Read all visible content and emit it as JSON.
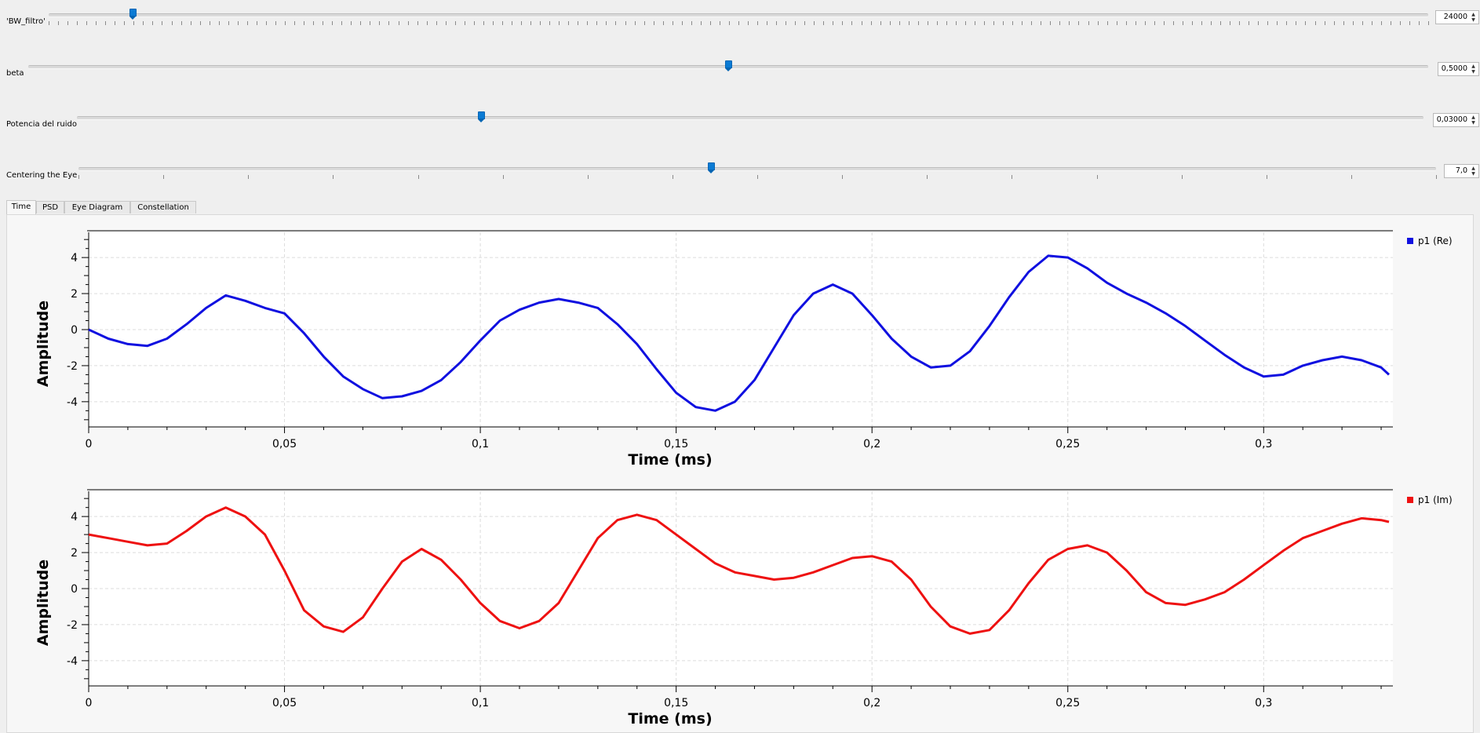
{
  "sliders": [
    {
      "label": "'BW_filtro'",
      "value": "24000",
      "fraction": 0.061
    },
    {
      "label": "beta",
      "value": "0,5000",
      "fraction": 0.5
    },
    {
      "label": "Potencia del ruido",
      "value": "0,03000",
      "fraction": 0.3
    },
    {
      "label": "Centering the Eye",
      "value": "7,0",
      "fraction": 0.466
    }
  ],
  "tabs": [
    {
      "label": "Time",
      "active": true
    },
    {
      "label": "PSD",
      "active": false
    },
    {
      "label": "Eye Diagram",
      "active": false
    },
    {
      "label": "Constellation",
      "active": false
    }
  ],
  "icons": {
    "spin_up": "▲",
    "spin_down": "▼",
    "spin_arrows": "spin-arrows-icon"
  },
  "chart_data": [
    {
      "type": "line",
      "xlabel": "Time (ms)",
      "ylabel": "Amplitude",
      "xlim": [
        0,
        0.333
      ],
      "ylim": [
        -5.4,
        5.4
      ],
      "x_ticks": [
        "0",
        "0,05",
        "0,1",
        "0,15",
        "0,2",
        "0,25",
        "0,3"
      ],
      "y_ticks": [
        "4",
        "2",
        "0",
        "-2",
        "-4"
      ],
      "grid": true,
      "legend": "top-right",
      "series": [
        {
          "name": "p1 (Re)",
          "color": "#1010e0",
          "x": [
            0,
            0.005,
            0.01,
            0.015,
            0.02,
            0.025,
            0.03,
            0.035,
            0.04,
            0.045,
            0.05,
            0.055,
            0.06,
            0.065,
            0.07,
            0.075,
            0.08,
            0.085,
            0.09,
            0.095,
            0.1,
            0.105,
            0.11,
            0.115,
            0.12,
            0.125,
            0.13,
            0.135,
            0.14,
            0.145,
            0.15,
            0.155,
            0.16,
            0.165,
            0.17,
            0.175,
            0.18,
            0.185,
            0.19,
            0.195,
            0.2,
            0.205,
            0.21,
            0.215,
            0.22,
            0.225,
            0.23,
            0.235,
            0.24,
            0.245,
            0.25,
            0.255,
            0.26,
            0.265,
            0.27,
            0.275,
            0.28,
            0.285,
            0.29,
            0.295,
            0.3,
            0.305,
            0.31,
            0.315,
            0.32,
            0.325,
            0.33,
            0.332
          ],
          "y": [
            0,
            -0.5,
            -0.8,
            -0.9,
            -0.5,
            0.3,
            1.2,
            1.9,
            1.6,
            1.2,
            0.9,
            -0.2,
            -1.5,
            -2.6,
            -3.3,
            -3.8,
            -3.7,
            -3.4,
            -2.8,
            -1.8,
            -0.6,
            0.5,
            1.1,
            1.5,
            1.7,
            1.5,
            1.2,
            0.3,
            -0.8,
            -2.2,
            -3.5,
            -4.3,
            -4.5,
            -4.0,
            -2.8,
            -1.0,
            0.8,
            2.0,
            2.5,
            2.0,
            0.8,
            -0.5,
            -1.5,
            -2.1,
            -2.0,
            -1.2,
            0.2,
            1.8,
            3.2,
            4.1,
            4.0,
            3.4,
            2.6,
            2.0,
            1.5,
            0.9,
            0.2,
            -0.6,
            -1.4,
            -2.1,
            -2.6,
            -2.5,
            -2.0,
            -1.7,
            -1.5,
            -1.7,
            -2.1,
            -2.5
          ]
        }
      ]
    },
    {
      "type": "line",
      "xlabel": "Time (ms)",
      "ylabel": "Amplitude",
      "xlim": [
        0,
        0.333
      ],
      "ylim": [
        -5.4,
        5.4
      ],
      "x_ticks": [
        "0",
        "0,05",
        "0,1",
        "0,15",
        "0,2",
        "0,25",
        "0,3"
      ],
      "y_ticks": [
        "4",
        "2",
        "0",
        "-2",
        "-4"
      ],
      "grid": true,
      "legend": "top-right",
      "series": [
        {
          "name": "p1 (Im)",
          "color": "#ee1111",
          "x": [
            0,
            0.005,
            0.01,
            0.015,
            0.02,
            0.025,
            0.03,
            0.035,
            0.04,
            0.045,
            0.05,
            0.055,
            0.06,
            0.065,
            0.07,
            0.075,
            0.08,
            0.085,
            0.09,
            0.095,
            0.1,
            0.105,
            0.11,
            0.115,
            0.12,
            0.125,
            0.13,
            0.135,
            0.14,
            0.145,
            0.15,
            0.155,
            0.16,
            0.165,
            0.17,
            0.175,
            0.18,
            0.185,
            0.19,
            0.195,
            0.2,
            0.205,
            0.21,
            0.215,
            0.22,
            0.225,
            0.23,
            0.235,
            0.24,
            0.245,
            0.25,
            0.255,
            0.26,
            0.265,
            0.27,
            0.275,
            0.28,
            0.285,
            0.29,
            0.295,
            0.3,
            0.305,
            0.31,
            0.315,
            0.32,
            0.325,
            0.33,
            0.332
          ],
          "y": [
            3.0,
            2.8,
            2.6,
            2.4,
            2.5,
            3.2,
            4.0,
            4.5,
            4.0,
            3.0,
            1.0,
            -1.2,
            -2.1,
            -2.4,
            -1.6,
            0,
            1.5,
            2.2,
            1.6,
            0.5,
            -0.8,
            -1.8,
            -2.2,
            -1.8,
            -0.8,
            1.0,
            2.8,
            3.8,
            4.1,
            3.8,
            3.0,
            2.2,
            1.4,
            0.9,
            0.7,
            0.5,
            0.6,
            0.9,
            1.3,
            1.7,
            1.8,
            1.5,
            0.5,
            -1.0,
            -2.1,
            -2.5,
            -2.3,
            -1.2,
            0.3,
            1.6,
            2.2,
            2.4,
            2.0,
            1.0,
            -0.2,
            -0.8,
            -0.9,
            -0.6,
            -0.2,
            0.5,
            1.3,
            2.1,
            2.8,
            3.2,
            3.6,
            3.9,
            3.8,
            3.7
          ]
        }
      ]
    }
  ]
}
